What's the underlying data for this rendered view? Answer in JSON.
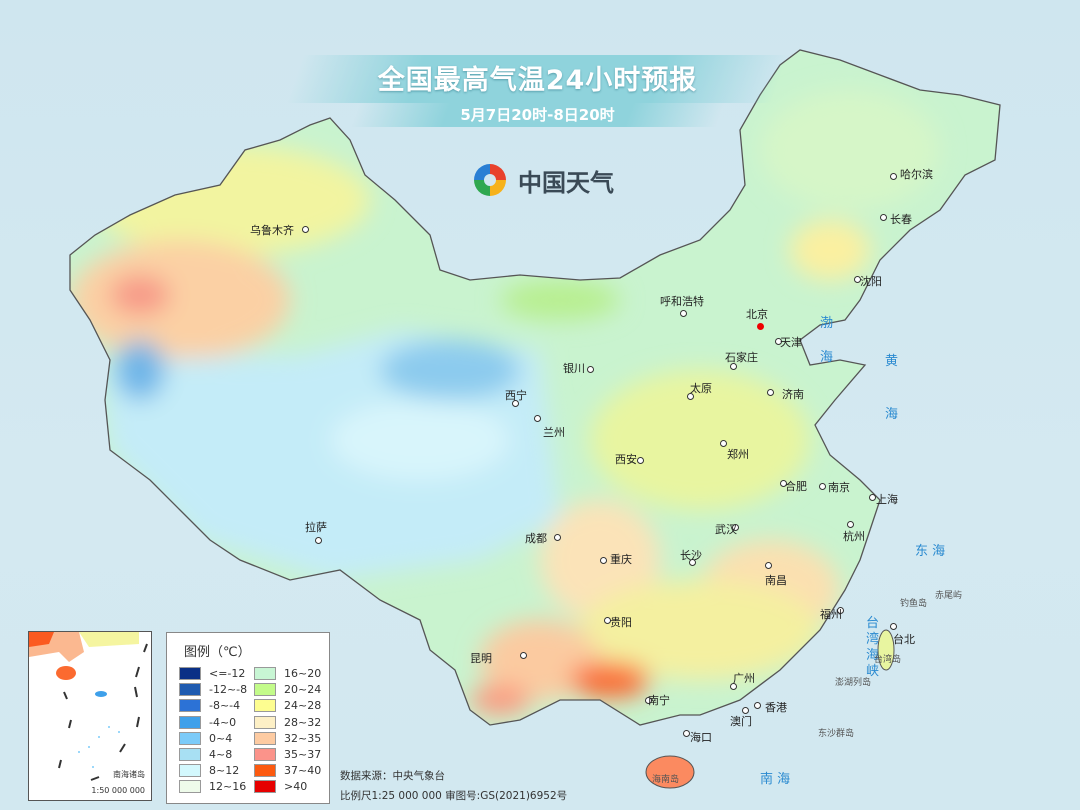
{
  "header": {
    "title": "全国最高气温24小时预报",
    "subtitle": "5月7日20时-8日20时"
  },
  "logo": {
    "text": "中国天气",
    "icon": "china-weather-swirl-logo"
  },
  "cities": [
    {
      "name": "乌鲁木齐"
    },
    {
      "name": "哈尔滨"
    },
    {
      "name": "长春"
    },
    {
      "name": "沈阳"
    },
    {
      "name": "呼和浩特"
    },
    {
      "name": "北京",
      "capital": true
    },
    {
      "name": "天津"
    },
    {
      "name": "石家庄"
    },
    {
      "name": "太原"
    },
    {
      "name": "济南"
    },
    {
      "name": "银川"
    },
    {
      "name": "西宁"
    },
    {
      "name": "兰州"
    },
    {
      "name": "西安"
    },
    {
      "name": "郑州"
    },
    {
      "name": "合肥"
    },
    {
      "name": "南京"
    },
    {
      "name": "上海"
    },
    {
      "name": "杭州"
    },
    {
      "name": "武汉"
    },
    {
      "name": "成都"
    },
    {
      "name": "重庆"
    },
    {
      "name": "拉萨"
    },
    {
      "name": "长沙"
    },
    {
      "name": "南昌"
    },
    {
      "name": "福州"
    },
    {
      "name": "贵阳"
    },
    {
      "name": "昆明"
    },
    {
      "name": "台北"
    },
    {
      "name": "广州"
    },
    {
      "name": "南宁"
    },
    {
      "name": "香港"
    },
    {
      "name": "澳门"
    },
    {
      "name": "海口"
    }
  ],
  "seas": [
    {
      "name": "渤"
    },
    {
      "name": "海"
    },
    {
      "name": "黄"
    },
    {
      "name": "海"
    },
    {
      "name": "东  海"
    },
    {
      "name": "台"
    },
    {
      "name": "湾"
    },
    {
      "name": "海"
    },
    {
      "name": "峡"
    },
    {
      "name": "南  海"
    }
  ],
  "islands": [
    {
      "name": "台湾岛"
    },
    {
      "name": "海南岛"
    },
    {
      "name": "钓鱼岛"
    },
    {
      "name": "赤尾屿"
    },
    {
      "name": "澎湖列岛"
    },
    {
      "name": "东沙群岛"
    }
  ],
  "legend": {
    "title": "图例（℃）",
    "items": [
      {
        "label": "<=-12",
        "color": "#0a2f86"
      },
      {
        "label": "-12~-8",
        "color": "#1f5bb0"
      },
      {
        "label": "-8~-4",
        "color": "#2c72d6"
      },
      {
        "label": "-4~0",
        "color": "#3ea0ea"
      },
      {
        "label": "0~4",
        "color": "#7ccbf9"
      },
      {
        "label": "4~8",
        "color": "#a8e0f3"
      },
      {
        "label": "8~12",
        "color": "#d3f8fd"
      },
      {
        "label": "12~16",
        "color": "#eefbea"
      },
      {
        "label": "16~20",
        "color": "#c8f6d4"
      },
      {
        "label": "20~24",
        "color": "#c3fb8a"
      },
      {
        "label": "24~28",
        "color": "#fdfd90"
      },
      {
        "label": "28~32",
        "color": "#fdf0c6"
      },
      {
        "label": "32~35",
        "color": "#fdcba2"
      },
      {
        "label": "35~37",
        "color": "#fb938a"
      },
      {
        "label": "37~40",
        "color": "#fc5a10"
      },
      {
        "label": ">40",
        "color": "#e60000"
      }
    ]
  },
  "inset": {
    "title": "南海诸岛",
    "scale": "1:50 000 000"
  },
  "footer": {
    "source": "数据来源：中央气象台",
    "scale": "比例尺1:25 000 000   审图号:GS(2021)6952号"
  }
}
